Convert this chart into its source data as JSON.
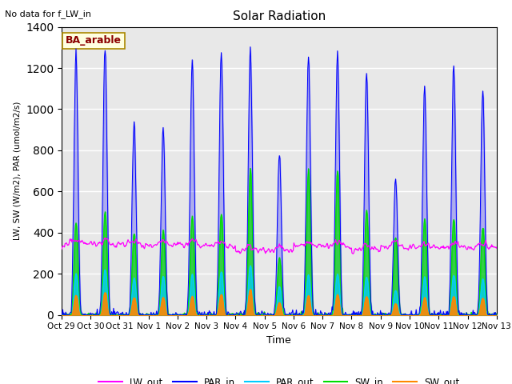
{
  "title": "Solar Radiation",
  "top_left_text": "No data for f_LW_in",
  "ylabel": "LW, SW (W/m2), PAR (umol/m2/s)",
  "xlabel": "Time",
  "annotation": "BA_arable",
  "ylim": [
    0,
    1400
  ],
  "yticks": [
    0,
    200,
    400,
    600,
    800,
    1000,
    1200,
    1400
  ],
  "xtick_labels": [
    "Oct 29",
    "Oct 30",
    "Oct 31",
    "Nov 1",
    "Nov 2",
    "Nov 3",
    "Nov 4",
    "Nov 5",
    "Nov 6",
    "Nov 7",
    "Nov 8",
    "Nov 9",
    "Nov 10",
    "Nov 11",
    "Nov 12",
    "Nov 13"
  ],
  "colors": {
    "LW_out": "#ff00ff",
    "PAR_in": "#0000ff",
    "PAR_out": "#00ccff",
    "SW_in": "#00dd00",
    "SW_out": "#ff8800"
  },
  "bg_color": "#e8e8e8"
}
